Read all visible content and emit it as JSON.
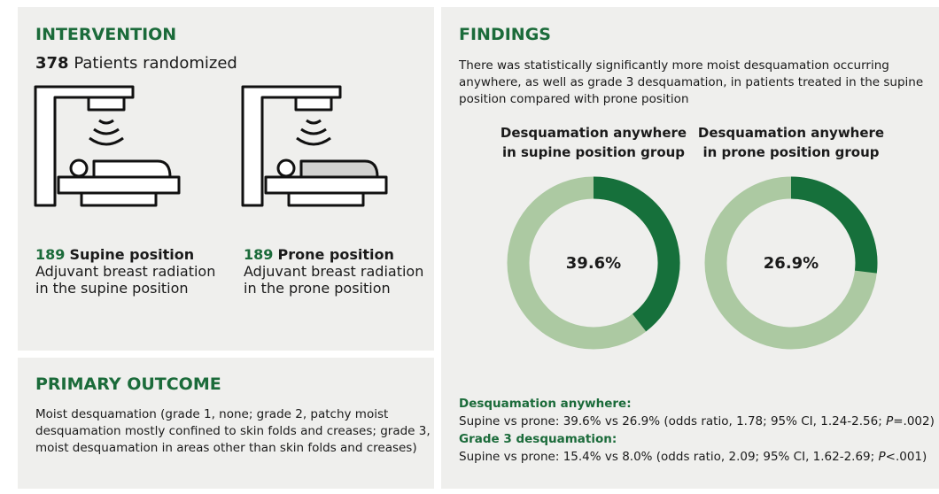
{
  "intervention": {
    "title": "INTERVENTION",
    "count": "378",
    "count_label": "Patients randomized",
    "arms": [
      {
        "count": "189",
        "name": "Supine position",
        "lines": [
          "Adjuvant breast radiation",
          "in the supine position"
        ]
      },
      {
        "count": "189",
        "name": "Prone position",
        "lines": [
          "Adjuvant breast radiation",
          "in the prone position"
        ]
      }
    ]
  },
  "primary_outcome": {
    "title": "PRIMARY OUTCOME",
    "lines": [
      "Moist desquamation (grade 1, none; grade 2, patchy moist",
      "desquamation mostly confined to skin folds and creases; grade 3,",
      "moist desquamation in areas other than skin folds and creases)"
    ]
  },
  "findings": {
    "title": "FINDINGS",
    "lines": [
      "There was statistically significantly more moist desquamation occurring",
      "anywhere, as well as grade 3 desquamation, in patients treated in the supine",
      "position compared with prone position"
    ],
    "donuts": [
      {
        "title": [
          "Desquamation anywhere",
          "in supine position group"
        ],
        "value": 39.6,
        "value_label": "39.6%"
      },
      {
        "title": [
          "Desquamation anywhere",
          "in prone position group"
        ],
        "value": 26.9,
        "value_label": "26.9%"
      }
    ],
    "results": [
      {
        "heading": "Desquamation anywhere:",
        "before": "Supine vs prone: 39.6% vs 26.9% (odds ratio, 1.78; 95% CI, 1.24-2.56; ",
        "italic": "P",
        "after": "=.002)"
      },
      {
        "heading": "Grade 3 desquamation:",
        "before": "Supine vs prone: 15.4% vs 8.0% (odds ratio, 2.09; 95% CI, 1.62-2.69; ",
        "italic": "P",
        "after": "<.001)"
      }
    ]
  }
}
